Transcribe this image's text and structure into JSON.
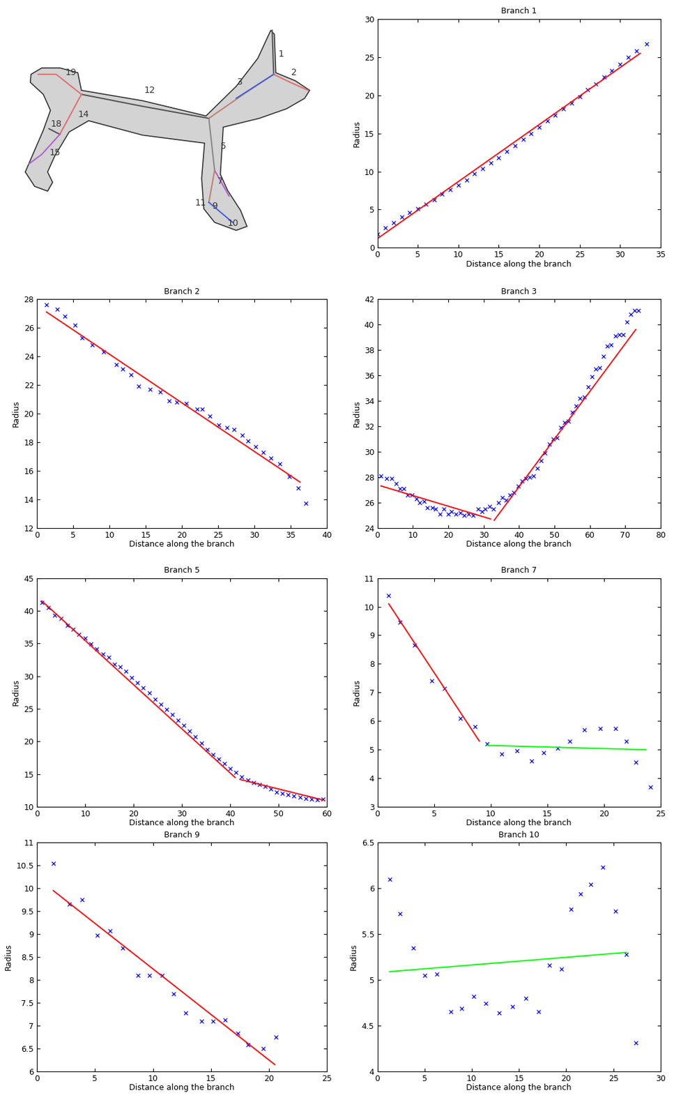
{
  "diagram": {
    "labels": [
      "1",
      "2",
      "3",
      "12",
      "5",
      "7",
      "9",
      "11",
      "10",
      "14",
      "15",
      "18",
      "19"
    ]
  },
  "chart_data": [
    {
      "type": "scatter",
      "title": "Branch 1",
      "x_label": "Distance along the branch",
      "y_label": "Radius",
      "xlim": [
        0,
        35
      ],
      "xticks": [
        0,
        5,
        10,
        15,
        20,
        25,
        30,
        35
      ],
      "ylim": [
        0,
        30
      ],
      "yticks": [
        0,
        5,
        10,
        15,
        20,
        25,
        30
      ],
      "series": [
        {
          "type": "scatter",
          "color": "#0000ff",
          "marker": "x",
          "x": [
            0,
            1,
            2,
            3,
            4,
            5,
            6,
            7,
            8,
            9,
            10,
            11,
            12,
            13,
            14,
            15,
            16,
            17,
            18,
            19,
            20,
            21,
            22,
            23,
            24,
            25,
            26,
            27,
            28,
            29,
            30,
            31,
            32,
            33.3
          ],
          "values": [
            1.8,
            2.6,
            3.3,
            4.0,
            4.6,
            5.1,
            5.7,
            6.3,
            7.0,
            7.6,
            8.2,
            8.9,
            9.7,
            10.4,
            11.1,
            11.8,
            12.6,
            13.4,
            14.2,
            15.0,
            15.8,
            16.6,
            17.4,
            18.2,
            19.0,
            19.8,
            20.7,
            21.5,
            22.4,
            23.2,
            24.1,
            25.0,
            25.8,
            26.7
          ]
        },
        {
          "type": "line",
          "color": "#ff0000",
          "x": [
            0,
            32.5
          ],
          "values": [
            1.2,
            25.5
          ]
        }
      ]
    },
    {
      "type": "scatter",
      "title": "Branch 2",
      "x_label": "Distance along the branch",
      "y_label": "Radius",
      "xlim": [
        0,
        40
      ],
      "xticks": [
        0,
        5,
        10,
        15,
        20,
        25,
        30,
        35,
        40
      ],
      "ylim": [
        12,
        28
      ],
      "yticks": [
        12,
        14,
        16,
        18,
        20,
        22,
        24,
        26,
        28
      ],
      "series": [
        {
          "type": "scatter",
          "color": "#0000ff",
          "marker": "x",
          "x": [
            1.3,
            2.8,
            3.8,
            5.2,
            6.2,
            7.6,
            9.2,
            10.9,
            11.8,
            13,
            14,
            15.6,
            17,
            18.2,
            19.3,
            20.6,
            22.1,
            22.8,
            23.8,
            25.1,
            26.2,
            27.2,
            28.3,
            29.1,
            30.2,
            31.2,
            32.3,
            33.5,
            34.8,
            36,
            37.1
          ],
          "values": [
            27.6,
            27.3,
            26.8,
            26.2,
            25.3,
            24.8,
            24.3,
            23.4,
            23.1,
            22.7,
            21.9,
            21.7,
            21.5,
            20.9,
            20.8,
            20.7,
            20.3,
            20.3,
            19.8,
            19.2,
            19.0,
            18.9,
            18.5,
            18.1,
            17.7,
            17.3,
            16.9,
            16.5,
            15.6,
            14.8,
            13.7
          ]
        },
        {
          "type": "line",
          "color": "#ff0000",
          "x": [
            1.3,
            36.3
          ],
          "values": [
            27.1,
            15.2
          ]
        }
      ]
    },
    {
      "type": "scatter",
      "title": "Branch 3",
      "x_label": "Distance along the branch",
      "y_label": "Radius",
      "xlim": [
        0,
        80
      ],
      "xticks": [
        0,
        10,
        20,
        30,
        40,
        50,
        60,
        70,
        80
      ],
      "ylim": [
        24,
        42
      ],
      "yticks": [
        24,
        26,
        28,
        30,
        32,
        34,
        36,
        38,
        40,
        42
      ],
      "series": [
        {
          "type": "scatter",
          "color": "#0000ff",
          "marker": "x",
          "x": [
            1,
            2.5,
            4,
            5.2,
            6.3,
            7.5,
            8.5,
            9.8,
            11,
            12,
            13.2,
            14,
            15.5,
            16.5,
            17.6,
            18.8,
            20,
            21,
            22.2,
            23.5,
            24.5,
            25.7,
            27,
            28.5,
            29.6,
            30.5,
            31.7,
            32.8,
            34.2,
            35.3,
            36.4,
            37.5,
            38.6,
            39.7,
            40.8,
            41.9,
            43,
            44.1,
            45.2,
            46.3,
            47.4,
            48.5,
            49.6,
            50.7,
            51.8,
            52.9,
            54,
            55.1,
            56.2,
            57.3,
            58.4,
            59.5,
            60.6,
            61.7,
            62.8,
            63.9,
            65,
            66.1,
            67.2,
            68.3,
            69.4,
            70.5,
            71.6,
            72.7,
            73.8
          ],
          "values": [
            28.1,
            27.9,
            27.9,
            27.5,
            27.1,
            27.1,
            26.6,
            26.6,
            26.3,
            26.0,
            26.1,
            25.6,
            25.6,
            25.5,
            25.1,
            25.5,
            25.1,
            25.3,
            25.1,
            25.2,
            25.0,
            25.1,
            25.0,
            25.5,
            25.3,
            25.5,
            25.7,
            25.5,
            26.0,
            26.4,
            26.2,
            26.6,
            26.8,
            27.3,
            27.7,
            27.9,
            28.0,
            28.1,
            28.7,
            29.3,
            29.9,
            30.6,
            31.0,
            31.1,
            31.9,
            32.3,
            32.4,
            33.1,
            33.6,
            34.2,
            34.3,
            35.1,
            35.9,
            36.5,
            36.6,
            37.5,
            38.3,
            38.4,
            39.1,
            39.2,
            39.2,
            40.2,
            40.8,
            41.1,
            41.1
          ]
        },
        {
          "type": "line",
          "color": "#ff0000",
          "x": [
            1,
            32
          ],
          "values": [
            27.3,
            24.7
          ]
        },
        {
          "type": "line",
          "color": "#ff0000",
          "x": [
            33,
            73
          ],
          "values": [
            24.6,
            39.6
          ]
        }
      ]
    },
    {
      "type": "scatter",
      "title": "Branch 5",
      "x_label": "Distance along the branch",
      "y_label": "Radius",
      "xlim": [
        0,
        60
      ],
      "xticks": [
        0,
        10,
        20,
        30,
        40,
        50,
        60
      ],
      "ylim": [
        10,
        45
      ],
      "yticks": [
        10,
        15,
        20,
        25,
        30,
        35,
        40,
        45
      ],
      "series": [
        {
          "type": "scatter",
          "color": "#0000ff",
          "marker": "x",
          "x": [
            1,
            2.3,
            3.7,
            5,
            6.3,
            7.5,
            8.7,
            10,
            11.2,
            12.4,
            13.6,
            14.8,
            16,
            17.2,
            18.4,
            19.6,
            20.8,
            22,
            23.2,
            24.4,
            25.6,
            26.8,
            28,
            29.2,
            30.4,
            31.6,
            32.8,
            34,
            35.2,
            36.4,
            37.6,
            38.8,
            40,
            41.2,
            42.4,
            43.6,
            44.8,
            46,
            47.2,
            48.4,
            49.6,
            50.8,
            52,
            53.2,
            54.4,
            55.6,
            56.8,
            58,
            59.2
          ],
          "values": [
            41.3,
            40.5,
            39.3,
            38.8,
            37.8,
            37.2,
            36.4,
            35.8,
            34.9,
            34.2,
            33.4,
            32.9,
            31.8,
            31.4,
            30.7,
            29.8,
            29.0,
            28.2,
            27.4,
            26.5,
            25.7,
            24.9,
            24.1,
            23.3,
            22.5,
            21.6,
            20.7,
            19.7,
            18.8,
            18.0,
            17.3,
            16.6,
            15.9,
            15.3,
            14.6,
            14.1,
            13.7,
            13.4,
            13.1,
            12.7,
            12.3,
            12.1,
            11.9,
            11.7,
            11.5,
            11.3,
            11.2,
            11.1,
            11.2
          ]
        },
        {
          "type": "line",
          "color": "#ff0000",
          "x": [
            1,
            41
          ],
          "values": [
            41.5,
            14.5
          ]
        },
        {
          "type": "line",
          "color": "#ff0000",
          "x": [
            42,
            59.5
          ],
          "values": [
            14.2,
            11.0
          ]
        }
      ]
    },
    {
      "type": "scatter",
      "title": "Branch 7",
      "x_label": "Distance along the branch",
      "y_label": "Radius",
      "xlim": [
        0,
        25
      ],
      "xticks": [
        0,
        5,
        10,
        15,
        20,
        25
      ],
      "ylim": [
        3,
        11
      ],
      "yticks": [
        3,
        4,
        5,
        6,
        7,
        8,
        9,
        10,
        11
      ],
      "series": [
        {
          "type": "scatter",
          "color": "#0000ff",
          "marker": "x",
          "x": [
            1,
            2,
            3.3,
            4.8,
            5.9,
            7.3,
            8.6,
            9.7,
            11,
            12.3,
            13.6,
            14.7,
            15.9,
            17,
            18.3,
            19.7,
            21,
            22,
            22.8,
            24.1
          ],
          "values": [
            10.4,
            9.45,
            8.65,
            7.4,
            7.15,
            6.1,
            5.8,
            5.2,
            4.85,
            4.95,
            4.6,
            4.9,
            5.05,
            5.3,
            5.7,
            5.75,
            5.75,
            5.3,
            4.55,
            3.7
          ]
        },
        {
          "type": "line",
          "color": "#ff0000",
          "x": [
            1,
            9
          ],
          "values": [
            10.1,
            5.3
          ]
        },
        {
          "type": "line",
          "color": "#00ff00",
          "x": [
            9.7,
            23.7
          ],
          "values": [
            5.15,
            5.0
          ]
        }
      ]
    },
    {
      "type": "scatter",
      "title": "Branch 9",
      "x_label": "Distance along the branch",
      "y_label": "Radius",
      "xlim": [
        0,
        25
      ],
      "xticks": [
        0,
        5,
        10,
        15,
        20,
        25
      ],
      "ylim": [
        6,
        11
      ],
      "yticks": [
        6,
        6.5,
        7,
        7.5,
        8,
        8.5,
        9,
        9.5,
        10,
        10.5,
        11
      ],
      "series": [
        {
          "type": "scatter",
          "color": "#0000ff",
          "marker": "x",
          "x": [
            1.4,
            2.8,
            3.9,
            5.2,
            6.3,
            7.4,
            8.7,
            9.7,
            10.8,
            11.8,
            12.8,
            14.2,
            15.2,
            16.2,
            17.3,
            18.2,
            19.5,
            20.6
          ],
          "values": [
            10.55,
            9.65,
            9.75,
            8.97,
            9.07,
            8.7,
            8.1,
            8.1,
            8.1,
            7.7,
            7.28,
            7.1,
            7.1,
            7.13,
            6.83,
            6.58,
            6.5,
            6.75
          ]
        },
        {
          "type": "line",
          "color": "#ff0000",
          "x": [
            1.4,
            20.5
          ],
          "values": [
            9.95,
            6.15
          ]
        }
      ]
    },
    {
      "type": "scatter",
      "title": "Branch 10",
      "x_label": "Distance along the branch",
      "y_label": "Radius",
      "xlim": [
        0,
        30
      ],
      "xticks": [
        0,
        5,
        10,
        15,
        20,
        25,
        30
      ],
      "ylim": [
        4,
        6.5
      ],
      "yticks": [
        4,
        4.5,
        5,
        5.5,
        6,
        6.5
      ],
      "series": [
        {
          "type": "scatter",
          "color": "#0000ff",
          "marker": "x",
          "x": [
            1.3,
            2.4,
            3.8,
            5,
            6.3,
            7.8,
            8.9,
            10.2,
            11.5,
            12.9,
            14.3,
            15.7,
            17.1,
            18.2,
            19.5,
            20.5,
            21.5,
            22.6,
            23.9,
            25.2,
            26.4,
            27.4
          ],
          "values": [
            6.1,
            5.72,
            5.35,
            5.05,
            5.06,
            4.65,
            4.69,
            4.82,
            4.74,
            4.64,
            4.71,
            4.8,
            4.65,
            5.16,
            5.12,
            5.77,
            5.94,
            6.04,
            6.23,
            5.75,
            5.28,
            4.31
          ]
        },
        {
          "type": "line",
          "color": "#00ff00",
          "x": [
            1.3,
            26.4
          ],
          "values": [
            5.09,
            5.3
          ]
        }
      ]
    }
  ]
}
